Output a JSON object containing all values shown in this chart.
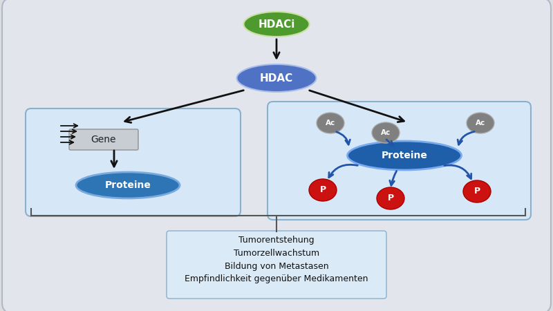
{
  "bg_color": "#dcdcdc",
  "outer_box_facecolor": "#e2e6ec",
  "outer_box_edgecolor": "#b0b8c8",
  "panel_bg": "#d6e8f7",
  "panel_border": "#8ab0cc",
  "hdaci_color": "#4f9a2e",
  "hdaci_label": "HDACi",
  "hdac_color": "#4f72c4",
  "hdac_label": "HDAC",
  "gene_box_color": "#c8cdd4",
  "gene_box_edge": "#909090",
  "gene_label": "Gene",
  "proteine_left_color": "#2e75b6",
  "proteine_left_label": "Proteine",
  "proteine_right_color": "#1f5faa",
  "proteine_right_label": "Proteine",
  "ac_color": "#808080",
  "ac_label": "Ac",
  "p_color": "#cc1111",
  "p_label": "P",
  "text_lines": [
    "Tumorentstehung",
    "Tumorzellwachstum",
    "Bildung von Metastasen",
    "Empfindlichkeit gegenüber Medikamenten"
  ],
  "text_box_bg": "#daeaf7",
  "text_box_edge": "#8ab0cc",
  "arrow_color": "#111111",
  "curved_arrow_color": "#2255aa",
  "bracket_color": "#555555"
}
